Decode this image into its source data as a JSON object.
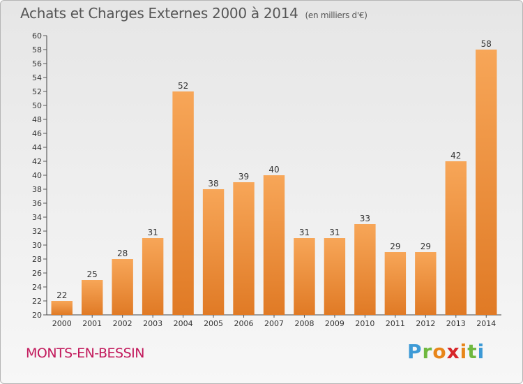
{
  "header": {
    "title": "Achats et Charges Externes 2000 à 2014",
    "unit": "(en milliers d'€)"
  },
  "footer": {
    "city": "MONTS-EN-BESSIN",
    "logo_letters": [
      "P",
      "r",
      "o",
      "x",
      "i",
      "t",
      "i"
    ],
    "logo_colors": [
      "#3d9ad6",
      "#6fb83f",
      "#e8861a",
      "#d7262a",
      "#e8861a",
      "#6fb83f",
      "#3d9ad6"
    ]
  },
  "colors": {
    "bar_light": "#f7a658",
    "bar_dark": "#e07a25",
    "axis": "#444444",
    "grid_tick": "#555555"
  },
  "chart_data": {
    "type": "bar",
    "title": "Achats et Charges Externes 2000 à 2014",
    "subtitle": "(en milliers d'€)",
    "categories": [
      "2000",
      "2001",
      "2002",
      "2003",
      "2004",
      "2005",
      "2006",
      "2007",
      "2008",
      "2009",
      "2010",
      "2011",
      "2012",
      "2013",
      "2014"
    ],
    "values": [
      22,
      25,
      28,
      31,
      52,
      38,
      39,
      40,
      31,
      31,
      33,
      29,
      29,
      42,
      58
    ],
    "ylim": [
      20,
      60
    ],
    "ytick_step": 2,
    "grid": false,
    "data_labels": true
  }
}
